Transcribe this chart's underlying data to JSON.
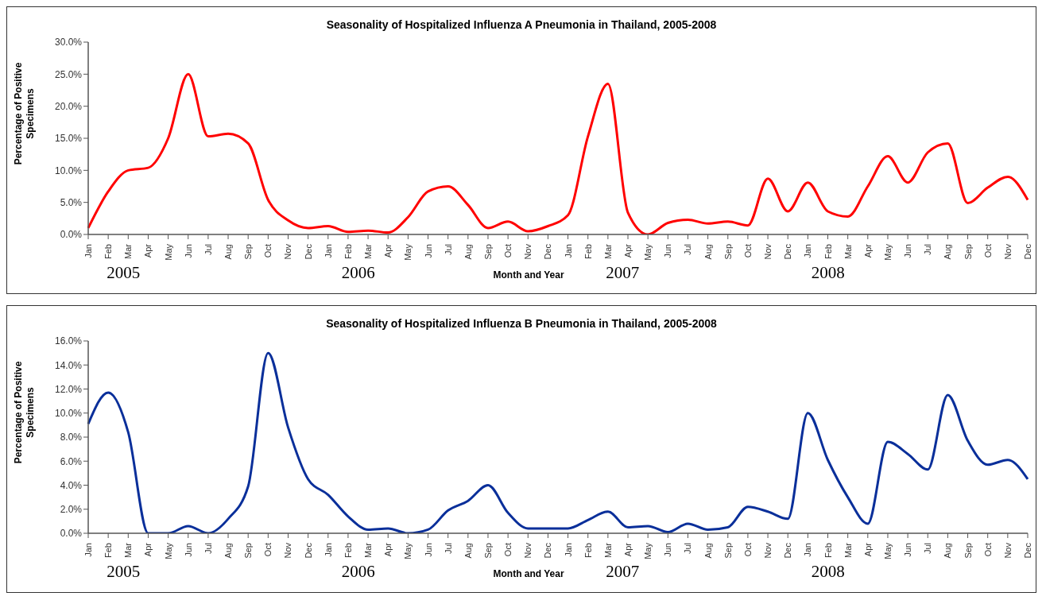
{
  "chart_data": [
    {
      "type": "line",
      "title": "Seasonality of Hospitalized Influenza A Pneumonia in Thailand, 2005-2008",
      "xlabel": "Month and Year",
      "ylabel": "Percentage of Positive Specimens",
      "categories": [
        "Jan",
        "Feb",
        "Mar",
        "Apr",
        "May",
        "Jun",
        "Jul",
        "Aug",
        "Sep",
        "Oct",
        "Nov",
        "Dec",
        "Jan",
        "Feb",
        "Mar",
        "Apr",
        "May",
        "Jun",
        "Jul",
        "Aug",
        "Sep",
        "Oct",
        "Nov",
        "Dec",
        "Jan",
        "Feb",
        "Mar",
        "Apr",
        "May",
        "Jun",
        "Jul",
        "Aug",
        "Sep",
        "Oct",
        "Nov",
        "Dec",
        "Jan",
        "Feb",
        "Mar",
        "Apr",
        "May",
        "Jun",
        "Jul",
        "Aug",
        "Sep",
        "Oct",
        "Nov",
        "Dec"
      ],
      "series": [
        {
          "color": "#ff0000",
          "values": [
            1.0,
            6.7,
            10.0,
            10.4,
            15.0,
            25.0,
            15.3,
            15.7,
            14.2,
            5.4,
            2.2,
            1.0,
            1.3,
            0.4,
            0.6,
            0.3,
            2.7,
            6.7,
            7.5,
            4.6,
            1.0,
            2.0,
            0.5,
            1.3,
            3.0,
            15.3,
            23.5,
            3.4,
            0.0,
            1.8,
            2.3,
            1.7,
            2.0,
            1.4,
            8.7,
            3.6,
            8.1,
            3.6,
            2.8,
            7.5,
            12.2,
            8.1,
            12.8,
            14.2,
            4.9,
            7.3,
            9.0,
            5.4
          ]
        }
      ],
      "ylim": [
        0,
        30
      ],
      "yticks": [
        {
          "value": 0,
          "label": "0.0%"
        },
        {
          "value": 5,
          "label": "5.0%"
        },
        {
          "value": 10,
          "label": "10.0%"
        },
        {
          "value": 15,
          "label": "15.0%"
        },
        {
          "value": 20,
          "label": "20.0%"
        },
        {
          "value": 25,
          "label": "25.0%"
        },
        {
          "value": 30,
          "label": "30.0%"
        }
      ],
      "annotations": [
        "2005",
        "2006",
        "2007",
        "2008"
      ],
      "grid": false,
      "legend": false,
      "marker": "none",
      "line_style": "solid"
    },
    {
      "type": "line",
      "title": "Seasonality of Hospitalized Influenza B Pneumonia in Thailand, 2005-2008",
      "xlabel": "Month and Year",
      "ylabel": "Percentage of Positive Specimens",
      "categories": [
        "Jan",
        "Feb",
        "Mar",
        "Apr",
        "May",
        "Jun",
        "Jul",
        "Aug",
        "Sep",
        "Oct",
        "Nov",
        "Dec",
        "Jan",
        "Feb",
        "Mar",
        "Apr",
        "May",
        "Jun",
        "Jul",
        "Aug",
        "Sep",
        "Oct",
        "Nov",
        "Dec",
        "Jan",
        "Feb",
        "Mar",
        "Apr",
        "May",
        "Jun",
        "Jul",
        "Aug",
        "Sep",
        "Oct",
        "Nov",
        "Dec",
        "Jan",
        "Feb",
        "Mar",
        "Apr",
        "May",
        "Jun",
        "Jul",
        "Aug",
        "Sep",
        "Oct",
        "Nov",
        "Dec"
      ],
      "series": [
        {
          "color": "#0a2f9a",
          "values": [
            9.1,
            11.7,
            8.4,
            0.0,
            0.0,
            0.6,
            0.0,
            1.2,
            3.9,
            15.0,
            8.8,
            4.5,
            3.2,
            1.4,
            0.3,
            0.4,
            0.0,
            0.3,
            1.9,
            2.7,
            4.0,
            1.7,
            0.4,
            0.4,
            0.4,
            1.1,
            1.8,
            0.5,
            0.6,
            0.1,
            0.8,
            0.3,
            0.5,
            2.2,
            1.8,
            1.2,
            10.0,
            6.1,
            3.0,
            0.8,
            7.6,
            6.6,
            5.3,
            11.5,
            7.7,
            5.7,
            6.1,
            4.5
          ]
        }
      ],
      "ylim": [
        0,
        16
      ],
      "yticks": [
        {
          "value": 0,
          "label": "0.0%"
        },
        {
          "value": 2,
          "label": "2.0%"
        },
        {
          "value": 4,
          "label": "4.0%"
        },
        {
          "value": 6,
          "label": "6.0%"
        },
        {
          "value": 8,
          "label": "8.0%"
        },
        {
          "value": 10,
          "label": "10.0%"
        },
        {
          "value": 12,
          "label": "12.0%"
        },
        {
          "value": 14,
          "label": "14.0%"
        },
        {
          "value": 16,
          "label": "16.0%"
        }
      ],
      "annotations": [
        "2005",
        "2006",
        "2007",
        "2008"
      ],
      "grid": false,
      "legend": false,
      "marker": "none",
      "line_style": "solid"
    }
  ]
}
